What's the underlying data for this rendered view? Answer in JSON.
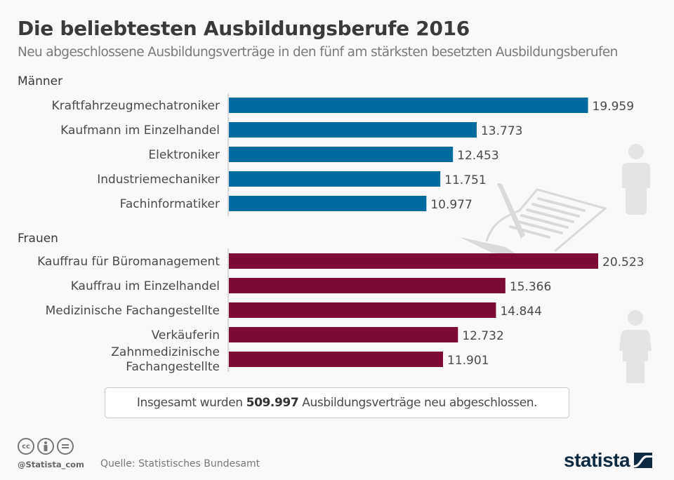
{
  "header": {
    "title": "Die beliebtesten Ausbildungsberufe 2016",
    "subtitle": "Neu abgeschlossene Ausbildungsverträge in den fünf am stärksten besetzten Ausbildungsberufen"
  },
  "colors": {
    "men": "#006b9e",
    "women": "#7d0b35",
    "background": "#f9f9f9",
    "decoration": "#dadada",
    "logo": "#0e2a40"
  },
  "chart_data": {
    "type": "bar",
    "orientation": "horizontal",
    "title": "Die beliebtesten Ausbildungsberufe 2016",
    "subtitle": "Neu abgeschlossene Ausbildungsverträge in den fünf am stärksten besetzten Ausbildungsberufen",
    "xlabel": "",
    "ylabel": "",
    "xlim": [
      0,
      20523
    ],
    "grid": false,
    "groups": [
      {
        "name": "Männer",
        "color": "#006b9e",
        "categories": [
          "Kraftfahrzeugmechatroniker",
          "Kaufmann im Einzelhandel",
          "Elektroniker",
          "Industriemechaniker",
          "Fachinformatiker"
        ],
        "values": [
          19959,
          13773,
          12453,
          11751,
          10977
        ],
        "value_labels": [
          "19.959",
          "13.773",
          "12.453",
          "11.751",
          "10.977"
        ]
      },
      {
        "name": "Frauen",
        "color": "#7d0b35",
        "categories": [
          "Kauffrau für Büromanagement",
          "Kauffrau im Einzelhandel",
          "Medizinische Fachangestellte",
          "Verkäuferin",
          "Zahnmedizinische Fachangestellte"
        ],
        "category_lines": [
          [
            "Kauffrau für Büromanagement"
          ],
          [
            "Kauffrau im Einzelhandel"
          ],
          [
            "Medizinische Fachangestellte"
          ],
          [
            "Verkäuferin"
          ],
          [
            "Zahnmedizinische",
            "Fachangestellte"
          ]
        ],
        "values": [
          20523,
          15366,
          14844,
          12732,
          11901
        ],
        "value_labels": [
          "20.523",
          "15.366",
          "14.844",
          "12.732",
          "11.901"
        ]
      }
    ]
  },
  "summary": {
    "prefix": "Insgesamt wurden ",
    "highlight": "509.997",
    "suffix": " Ausbildungsverträge neu abgeschlossen."
  },
  "footer": {
    "license_icons": [
      "cc",
      "by",
      "nd"
    ],
    "license_text": [
      "cc",
      "",
      "="
    ],
    "handle": "@Statista_com",
    "source": "Quelle: Statistisches Bundesamt",
    "logo_text": "statista"
  },
  "decorations": [
    "contract-with-pen-icon",
    "man-figure-icon",
    "woman-figure-icon"
  ]
}
